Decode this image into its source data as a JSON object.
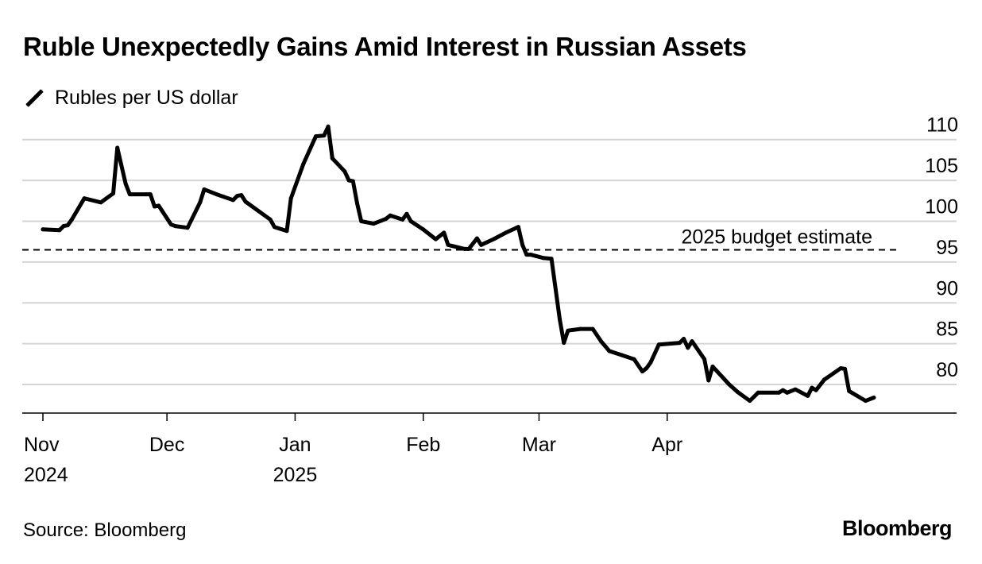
{
  "chart_data": {
    "type": "line",
    "title": "Ruble Unexpectedly Gains Amid Interest in Russian Assets",
    "series": [
      {
        "name": "Rubles per US dollar",
        "color": "#000000",
        "points": [
          [
            "2024-11-01",
            99.0
          ],
          [
            "2024-11-05",
            98.9
          ],
          [
            "2024-11-06",
            99.4
          ],
          [
            "2024-11-07",
            99.5
          ],
          [
            "2024-11-08",
            100.2
          ],
          [
            "2024-11-11",
            102.8
          ],
          [
            "2024-11-15",
            102.3
          ],
          [
            "2024-11-18",
            103.4
          ],
          [
            "2024-11-19",
            109.0
          ],
          [
            "2024-11-21",
            104.6
          ],
          [
            "2024-11-22",
            103.3
          ],
          [
            "2024-11-26",
            103.3
          ],
          [
            "2024-11-27",
            103.3
          ],
          [
            "2024-11-28",
            101.8
          ],
          [
            "2024-11-29",
            101.9
          ],
          [
            "2024-12-02",
            99.6
          ],
          [
            "2024-12-03",
            99.4
          ],
          [
            "2024-12-06",
            99.2
          ],
          [
            "2024-12-09",
            102.3
          ],
          [
            "2024-12-10",
            103.9
          ],
          [
            "2024-12-13",
            103.3
          ],
          [
            "2024-12-17",
            102.6
          ],
          [
            "2024-12-18",
            103.1
          ],
          [
            "2024-12-19",
            103.2
          ],
          [
            "2024-12-20",
            102.4
          ],
          [
            "2024-12-26",
            100.2
          ],
          [
            "2024-12-27",
            99.3
          ],
          [
            "2024-12-30",
            98.8
          ],
          [
            "2024-12-31",
            102.8
          ],
          [
            "2025-01-03",
            107.0
          ],
          [
            "2025-01-06",
            110.4
          ],
          [
            "2025-01-08",
            110.5
          ],
          [
            "2025-01-09",
            111.6
          ],
          [
            "2025-01-10",
            107.7
          ],
          [
            "2025-01-13",
            106.1
          ],
          [
            "2025-01-14",
            105.0
          ],
          [
            "2025-01-15",
            104.9
          ],
          [
            "2025-01-16",
            102.2
          ],
          [
            "2025-01-17",
            100.0
          ],
          [
            "2025-01-20",
            99.7
          ],
          [
            "2025-01-23",
            100.3
          ],
          [
            "2025-01-24",
            100.7
          ],
          [
            "2025-01-27",
            100.2
          ],
          [
            "2025-01-28",
            100.9
          ],
          [
            "2025-01-29",
            100.0
          ],
          [
            "2025-02-01",
            99.0
          ],
          [
            "2025-02-04",
            97.8
          ],
          [
            "2025-02-06",
            98.6
          ],
          [
            "2025-02-07",
            97.1
          ],
          [
            "2025-02-11",
            96.6
          ],
          [
            "2025-02-12",
            96.6
          ],
          [
            "2025-02-14",
            97.9
          ],
          [
            "2025-02-15",
            97.1
          ],
          [
            "2025-02-18",
            97.8
          ],
          [
            "2025-02-21",
            98.6
          ],
          [
            "2025-02-24",
            99.3
          ],
          [
            "2025-02-25",
            97.1
          ],
          [
            "2025-02-26",
            95.9
          ],
          [
            "2025-02-27",
            95.9
          ],
          [
            "2025-03-02",
            95.5
          ],
          [
            "2025-03-04",
            95.4
          ],
          [
            "2025-03-06",
            88.0
          ],
          [
            "2025-03-07",
            85.1
          ],
          [
            "2025-03-08",
            86.6
          ],
          [
            "2025-03-11",
            86.8
          ],
          [
            "2025-03-14",
            86.8
          ],
          [
            "2025-03-16",
            85.3
          ],
          [
            "2025-03-18",
            84.1
          ],
          [
            "2025-03-21",
            83.6
          ],
          [
            "2025-03-24",
            83.1
          ],
          [
            "2025-03-26",
            81.6
          ],
          [
            "2025-03-27",
            82.0
          ],
          [
            "2025-03-28",
            82.7
          ],
          [
            "2025-03-30",
            84.9
          ],
          [
            "2025-04-04",
            85.1
          ],
          [
            "2025-04-05",
            85.6
          ],
          [
            "2025-04-06",
            84.5
          ],
          [
            "2025-04-07",
            85.3
          ],
          [
            "2025-04-10",
            83.1
          ],
          [
            "2025-04-11",
            80.5
          ],
          [
            "2025-04-12",
            82.2
          ],
          [
            "2025-04-16",
            80.0
          ],
          [
            "2025-04-18",
            79.1
          ],
          [
            "2025-04-21",
            78.0
          ],
          [
            "2025-04-23",
            79.0
          ],
          [
            "2025-04-28",
            79.0
          ],
          [
            "2025-04-29",
            79.3
          ],
          [
            "2025-04-30",
            79.0
          ],
          [
            "2025-05-02",
            79.4
          ],
          [
            "2025-05-05",
            78.6
          ],
          [
            "2025-05-06",
            79.6
          ],
          [
            "2025-05-07",
            79.3
          ],
          [
            "2025-05-09",
            80.6
          ],
          [
            "2025-05-13",
            82.0
          ],
          [
            "2025-05-14",
            81.9
          ],
          [
            "2025-05-15",
            79.2
          ],
          [
            "2025-05-19",
            78.0
          ],
          [
            "2025-05-21",
            78.4
          ]
        ]
      }
    ],
    "reference_line": {
      "label": "2025 budget estimate",
      "value": 96.5
    },
    "y_axis": {
      "position": "right",
      "ylim": [
        76.5,
        112.5
      ],
      "ticks": [
        80,
        85,
        90,
        95,
        100,
        105,
        110
      ]
    },
    "x_axis": {
      "range": [
        "2024-10-27",
        "2025-06-10"
      ],
      "ticks": [
        {
          "date": "2024-11-01",
          "label": "Nov",
          "sublabel": "2024"
        },
        {
          "date": "2024-12-01",
          "label": "Dec",
          "sublabel": ""
        },
        {
          "date": "2025-01-01",
          "label": "Jan",
          "sublabel": "2025"
        },
        {
          "date": "2025-02-01",
          "label": "Feb",
          "sublabel": ""
        },
        {
          "date": "2025-03-01",
          "label": "Mar",
          "sublabel": ""
        },
        {
          "date": "2025-04-01",
          "label": "Apr",
          "sublabel": ""
        }
      ]
    },
    "legend": {
      "placement": "top-left"
    },
    "grid": true
  },
  "footer": {
    "source": "Source: Bloomberg",
    "brand": "Bloomberg"
  }
}
